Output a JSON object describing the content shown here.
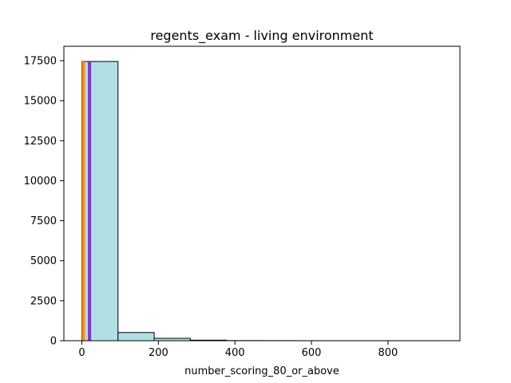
{
  "chart_data": {
    "type": "histogram",
    "title": "regents_exam - living environment",
    "xlabel": "number_scoring_80_or_above",
    "ylabel": "",
    "xlim": [
      -47,
      988
    ],
    "ylim": [
      0,
      18400
    ],
    "xticks": [
      0,
      200,
      400,
      600,
      800
    ],
    "yticks": [
      0,
      2500,
      5000,
      7500,
      10000,
      12500,
      15000,
      17500
    ],
    "bins": [
      {
        "x0": 0,
        "x1": 94.5,
        "count": 17450
      },
      {
        "x0": 94.5,
        "x1": 189,
        "count": 510
      },
      {
        "x0": 189,
        "x1": 283.5,
        "count": 150
      },
      {
        "x0": 283.5,
        "x1": 378,
        "count": 35
      },
      {
        "x0": 378,
        "x1": 472.5,
        "count": 8
      },
      {
        "x0": 472.5,
        "x1": 567,
        "count": 4
      },
      {
        "x0": 567,
        "x1": 661.5,
        "count": 2
      },
      {
        "x0": 661.5,
        "x1": 756,
        "count": 1
      },
      {
        "x0": 756,
        "x1": 850.5,
        "count": 1
      },
      {
        "x0": 850.5,
        "x1": 945,
        "count": 1
      }
    ],
    "bar_fill": "#b0e0e6",
    "bar_edge": "#000000",
    "vlines": [
      {
        "x": 4,
        "color": "#ff8c00"
      },
      {
        "x": 20,
        "color": "#8a2be2"
      }
    ]
  }
}
